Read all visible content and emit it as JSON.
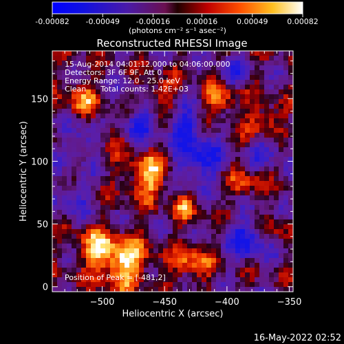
{
  "colorbar": {
    "ticks": [
      "-0.00082",
      "-0.00049",
      "-0.00016",
      "0.00016",
      "0.00049",
      "0.00082"
    ],
    "unit_label": "(photons cm⁻² s⁻¹ asec⁻²)",
    "min": -0.00082,
    "max": 0.00082
  },
  "chart_data": {
    "type": "heatmap",
    "title": "Reconstructed RHESSI Image",
    "xlabel": "Heliocentric X (arcsec)",
    "ylabel": "Heliocentric Y (arcsec)",
    "xlim": [
      -540,
      -347
    ],
    "ylim": [
      -4,
      188
    ],
    "xticks": [
      -500,
      -450,
      -400,
      -350
    ],
    "yticks": [
      0,
      50,
      100,
      150
    ],
    "peak": {
      "x": -481,
      "y": 2
    },
    "annotations": [
      "15-Aug-2014 04:01:12.000 to 04:06:00.000",
      "Detectors: 3F 6F 9F, Att 0",
      "Energy Range: 12.0 - 25.0 keV",
      "Clean      Total counts: 1.42E+03"
    ],
    "peak_label": "Position of Peak = [-481,2]",
    "colormap": "blue-purple-red-yellow-white"
  },
  "timestamp": "16-May-2022 02:52"
}
